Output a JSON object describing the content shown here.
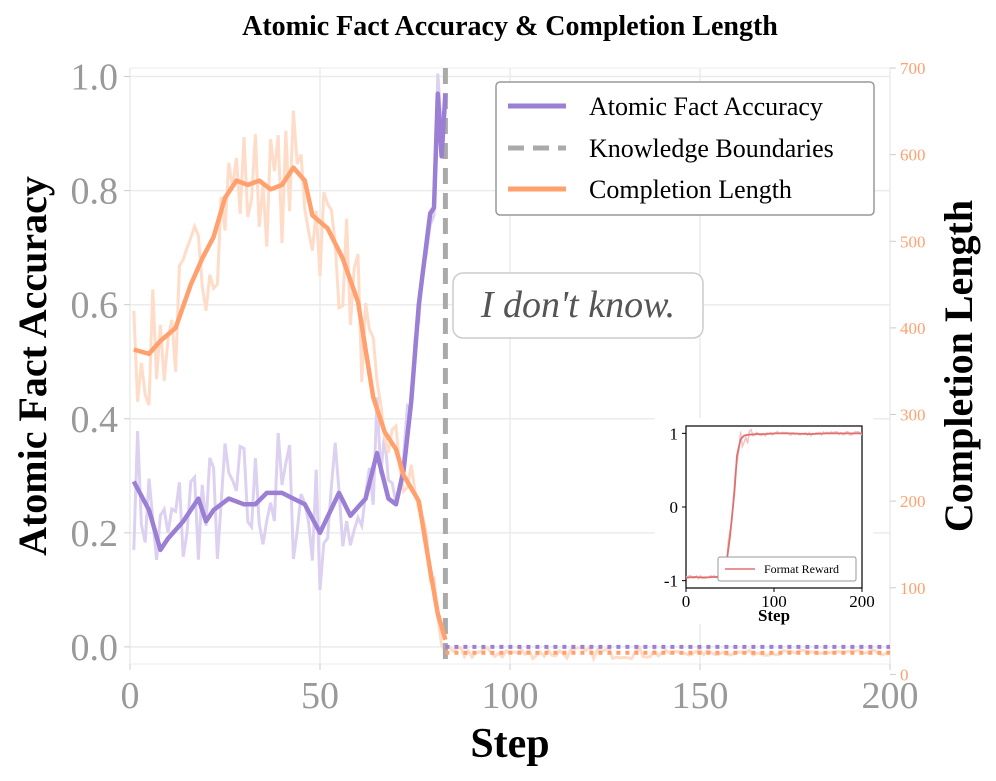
{
  "chart_data": [
    {
      "type": "line",
      "title": "Atomic Fact Accuracy & Completion Length",
      "xlabel": "Step",
      "ylabel": "Atomic Fact Accuracy",
      "y2label": "Completion Length",
      "xlim": [
        0,
        200
      ],
      "ylim": [
        -0.03,
        1.015
      ],
      "y2lim": [
        12,
        700
      ],
      "xticks": [
        "0",
        "50",
        "100",
        "150",
        "200"
      ],
      "yticks": [
        "0.0",
        "0.2",
        "0.4",
        "0.6",
        "0.8",
        "1.0"
      ],
      "y2ticks": [
        "0",
        "100",
        "200",
        "300",
        "400",
        "500",
        "600",
        "700"
      ],
      "grid": true,
      "legend_position": "top-right",
      "legend": [
        "Atomic Fact Accuracy",
        "Knowledge Boundaries",
        "Completion Length"
      ],
      "annotation": "I don't know.",
      "colors": {
        "accuracy": "#9b7fd4",
        "accuracy_raw": "#ddd1f1",
        "length": "#ffa06e",
        "length_raw": "#ffdcc8",
        "boundary": "#aaaaaa",
        "axis_text": "#999999",
        "right_axis_text": "#ffa06e"
      },
      "knowledge_boundary_step": 83,
      "series": [
        {
          "name": "Atomic Fact Accuracy",
          "axis": "left",
          "x": [
            1,
            5,
            8,
            10,
            14,
            18,
            20,
            22,
            26,
            30,
            33,
            36,
            40,
            43,
            46,
            50,
            55,
            58,
            62,
            65,
            68,
            70,
            72,
            74,
            76,
            79,
            80,
            81,
            82,
            83
          ],
          "y": [
            0.29,
            0.24,
            0.17,
            0.19,
            0.22,
            0.26,
            0.22,
            0.24,
            0.26,
            0.25,
            0.25,
            0.27,
            0.27,
            0.26,
            0.25,
            0.2,
            0.27,
            0.23,
            0.26,
            0.34,
            0.26,
            0.25,
            0.31,
            0.43,
            0.6,
            0.76,
            0.77,
            0.97,
            0.86,
            0.97
          ]
        },
        {
          "name": "Completion Length",
          "axis": "right",
          "x": [
            1,
            5,
            8,
            12,
            16,
            19,
            22,
            25,
            28,
            31,
            34,
            37,
            40,
            43,
            46,
            48,
            52,
            56,
            60,
            64,
            67,
            70,
            72,
            76,
            79,
            81,
            83
          ],
          "y": [
            375,
            370,
            385,
            400,
            450,
            480,
            505,
            550,
            570,
            565,
            570,
            560,
            565,
            585,
            570,
            530,
            515,
            480,
            430,
            320,
            280,
            260,
            230,
            200,
            120,
            70,
            40
          ]
        }
      ],
      "post_boundary": {
        "x_range": [
          83,
          200
        ],
        "accuracy_value": 0.0,
        "length_value": 25
      },
      "inset": {
        "type": "line",
        "xlabel": "Step",
        "xlim": [
          0,
          200
        ],
        "ylim": [
          -1.1,
          1.1
        ],
        "xticks": [
          "0",
          "100",
          "200"
        ],
        "yticks": [
          "-1",
          "0",
          "1"
        ],
        "legend": [
          "Format Reward"
        ],
        "color": "#e07070",
        "series": [
          {
            "name": "Format Reward",
            "x": [
              0,
              10,
              20,
              30,
              38,
              45,
              50,
              55,
              58,
              62,
              66,
              70,
              80,
              90,
              100,
              120,
              140,
              160,
              180,
              200
            ],
            "y": [
              -0.96,
              -0.95,
              -0.96,
              -0.95,
              -0.95,
              -0.85,
              -0.4,
              0.2,
              0.7,
              0.92,
              0.97,
              0.98,
              0.99,
              0.99,
              1.0,
              1.0,
              0.99,
              1.0,
              1.0,
              1.0
            ]
          }
        ]
      }
    }
  ]
}
